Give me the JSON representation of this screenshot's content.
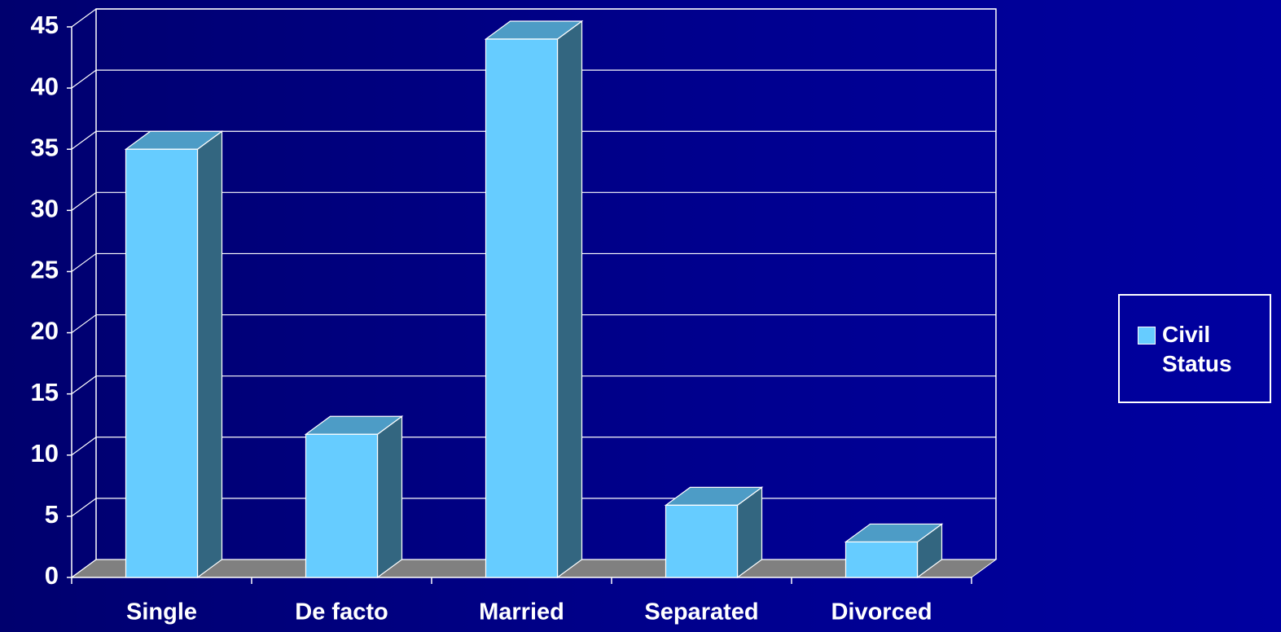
{
  "chart_data": {
    "type": "bar3d",
    "categories": [
      "Single",
      "De facto",
      "Married",
      "Separated",
      "Divorced"
    ],
    "series": [
      {
        "name": "Civil Status",
        "color": "#66ccff",
        "values": [
          35,
          11.7,
          44,
          5.9,
          2.9
        ]
      }
    ],
    "ylim": [
      0,
      45
    ],
    "yticks": [
      0,
      5,
      10,
      15,
      20,
      25,
      30,
      35,
      40,
      45
    ],
    "grid": true,
    "legend": "right"
  }
}
